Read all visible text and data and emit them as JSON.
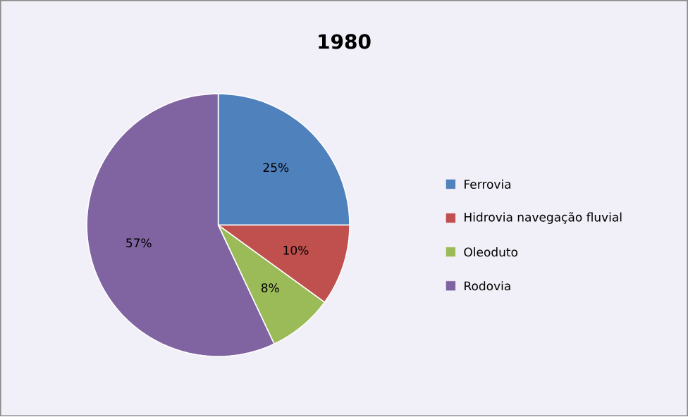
{
  "chart_data": {
    "type": "pie",
    "title": "1980",
    "categories": [
      "Ferrovia",
      "Hidrovia navegação fluvial",
      "Oleoduto",
      "Rodovia"
    ],
    "values": [
      25,
      10,
      8,
      57
    ],
    "colors": [
      "#4f81bd",
      "#c0504d",
      "#9bbb59",
      "#8064a2"
    ],
    "value_labels": [
      "25%",
      "10%",
      "8%",
      "57%"
    ],
    "legend": "right"
  }
}
